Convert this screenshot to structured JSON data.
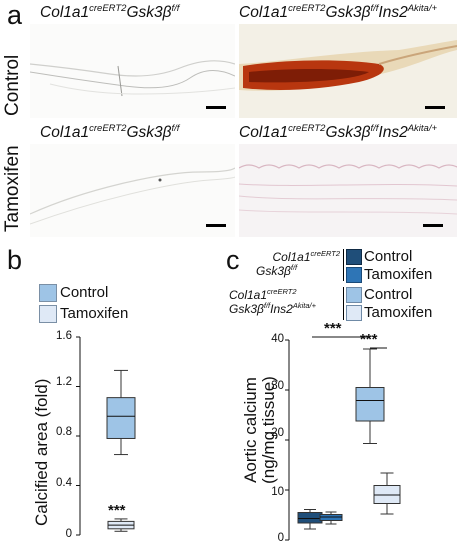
{
  "figure": {
    "panel_a": {
      "letter": "a",
      "row_labels": [
        "Control",
        "Tamoxifen"
      ],
      "col1_gene": "Col1a1",
      "col1_sup": "creERT2",
      "col1_gene2": "Gsk3β",
      "col1_sup2": "f/f",
      "col2_gene": "Col1a1",
      "col2_sup": "creERT2",
      "col2_gene2": "Gsk3β",
      "col2_sup2": "f/f",
      "col2_gene3": "Ins2",
      "col2_sup3": "Akita/+"
    },
    "panel_b": {
      "letter": "b",
      "legend": [
        "Control",
        "Tamoxifen"
      ],
      "ylabel": "Calcified area (fold)",
      "yticks": [
        "0",
        "0.4",
        "0.8",
        "1.2",
        "1.6"
      ],
      "significance": "***",
      "colors": {
        "control": "#9ec4e6",
        "tamoxifen": "#dfe9f6"
      }
    },
    "panel_c": {
      "letter": "c",
      "group1_line1": "Col1a1",
      "group1_sup1": "creERT2",
      "group1_line2": "Gsk3β",
      "group1_sup2": "f/f",
      "group2_line1": "Col1a1",
      "group2_sup1": "creERT2",
      "group2_line2a": "Gsk3β",
      "group2_sup2a": "f/f",
      "group2_line2b": "Ins2",
      "group2_sup2b": "Akita/+",
      "legend": [
        "Control",
        "Tamoxifen",
        "Control",
        "Tamoxifen"
      ],
      "ylabel_line1": "Aortic calcium",
      "ylabel_line2": "(ng/mg tissue)",
      "yticks": [
        "0",
        "10",
        "20",
        "30",
        "40"
      ],
      "significance1": "***",
      "significance2": "***",
      "colors": {
        "g1_control": "#1f4e79",
        "g1_tamoxifen": "#2e75b6",
        "g2_control": "#9ec4e6",
        "g2_tamoxifen": "#dfe9f6"
      }
    }
  },
  "chart_data": [
    {
      "type": "box",
      "panel": "b",
      "ylabel": "Calcified area (fold)",
      "ylim": [
        0,
        1.6
      ],
      "legend": "top",
      "series": [
        {
          "name": "Control",
          "min": 0.65,
          "q1": 0.78,
          "median": 0.96,
          "q3": 1.11,
          "max": 1.33
        },
        {
          "name": "Tamoxifen",
          "min": 0.03,
          "q1": 0.05,
          "median": 0.08,
          "q3": 0.11,
          "max": 0.13
        }
      ]
    },
    {
      "type": "box",
      "panel": "c",
      "ylabel": "Aortic calcium (ng/mg tissue)",
      "ylim": [
        0,
        40
      ],
      "legend": "top",
      "series": [
        {
          "name": "Control",
          "min": 2.2,
          "q1": 3.4,
          "median": 4.3,
          "q3": 5.5,
          "max": 6.1
        },
        {
          "name": "Tamoxifen",
          "min": 3.2,
          "q1": 3.9,
          "median": 4.6,
          "q3": 5.1,
          "max": 5.6
        },
        {
          "name": "Control",
          "min": 19.3,
          "q1": 23.8,
          "median": 27.9,
          "q3": 30.5,
          "max": 38.2
        },
        {
          "name": "Tamoxifen",
          "min": 5.2,
          "q1": 7.3,
          "median": 9.0,
          "q3": 10.9,
          "max": 13.4
        }
      ]
    }
  ]
}
